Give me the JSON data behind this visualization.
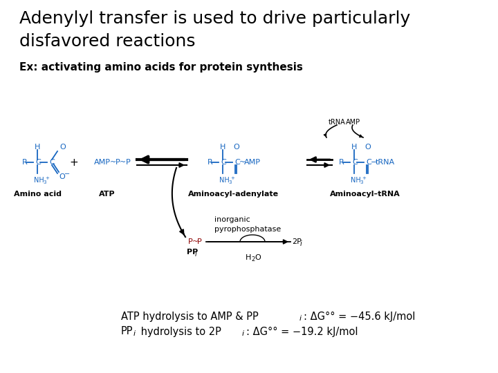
{
  "title_line1": "Adenylyl transfer is used to drive particularly",
  "title_line2": "disfavored reactions",
  "subtitle": "Ex: activating amino acids for protein synthesis",
  "bg_color": "#ffffff",
  "black": "#000000",
  "blue": "#1565C0",
  "dark_red": "#8B0000",
  "fig_width": 7.2,
  "fig_height": 5.4,
  "dpi": 100,
  "title_fontsize": 18,
  "subtitle_fontsize": 11
}
